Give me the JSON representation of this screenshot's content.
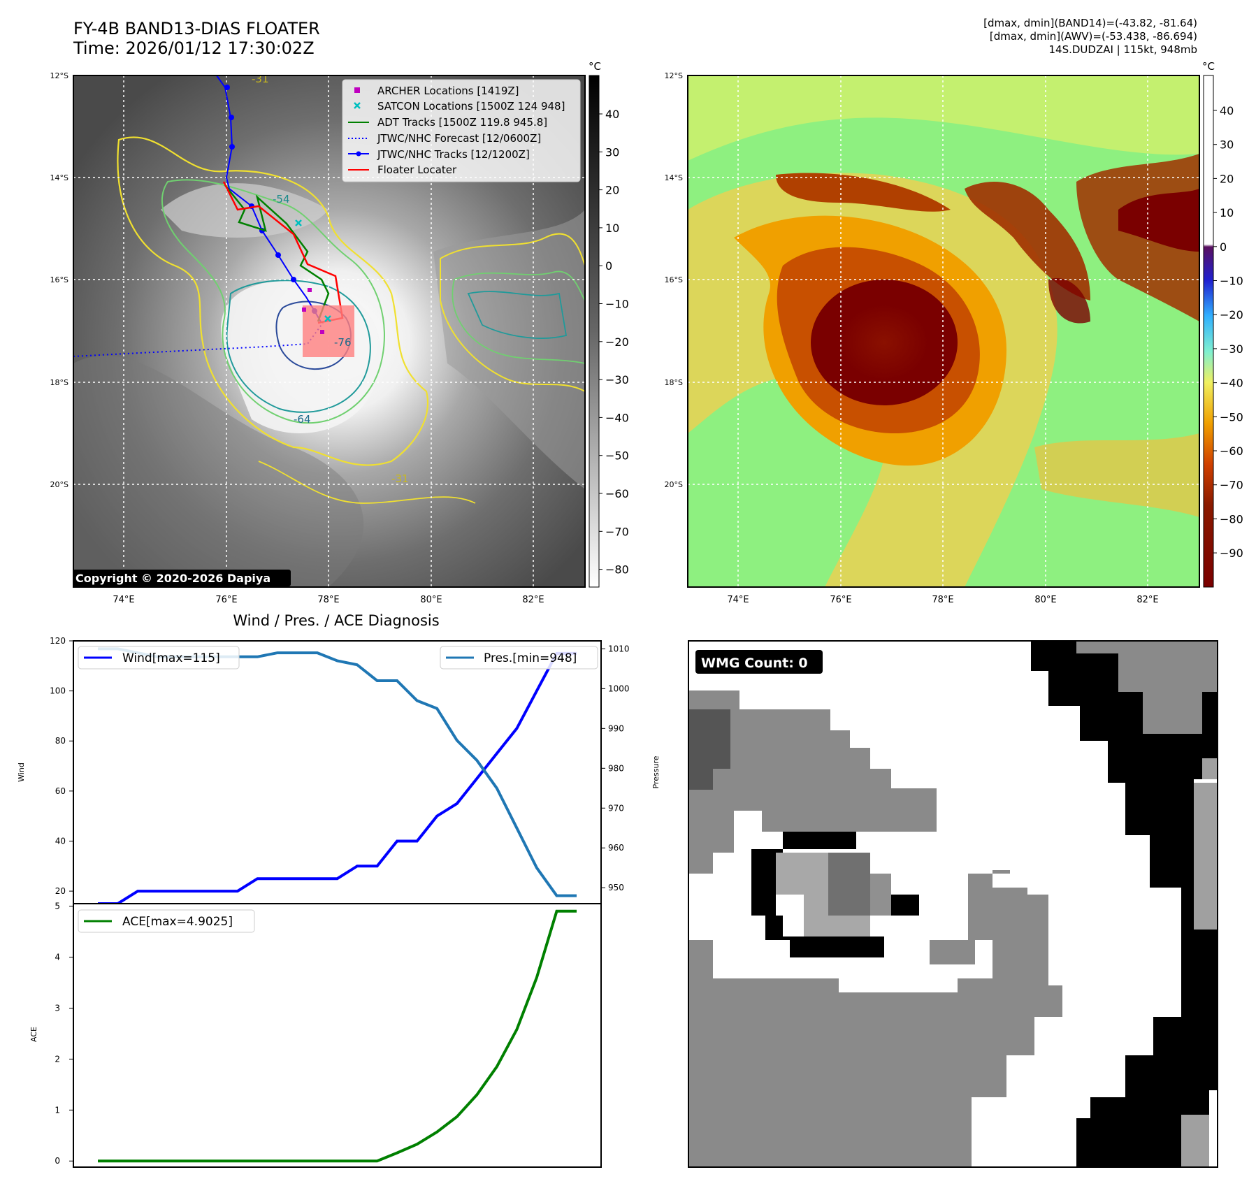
{
  "header": {
    "title_line1": "FY-4B BAND13-DIAS FLOATER",
    "title_line2": "Time: 2026/01/12 17:30:02Z",
    "right_line1": "[dmax, dmin](BAND14)=(-43.82, -81.64)",
    "right_line2": "[dmax, dmin](AWV)=(-53.438, -86.694)",
    "right_line3": "14S.DUDZAI | 115kt, 948mb"
  },
  "map": {
    "lat_ticks": [
      "12°S",
      "14°S",
      "16°S",
      "18°S",
      "20°S"
    ],
    "lon_ticks": [
      "74°E",
      "76°E",
      "78°E",
      "80°E",
      "82°E"
    ],
    "copyright": "Copyright © 2020-2026 Dapiya",
    "contour_labels": [
      "-31",
      "-54",
      "-64",
      "-76"
    ],
    "legend": [
      {
        "label": "ARCHER Locations [1419Z]",
        "color": "#bf00bf"
      },
      {
        "label": "SATCON Locations [1500Z 124 948]",
        "color": "#00bfbf"
      },
      {
        "label": "ADT Tracks [1500Z 119.8 945.8]",
        "color": "#008000"
      },
      {
        "label": "JTWC/NHC Forecast [12/0600Z]",
        "color": "#0000ff"
      },
      {
        "label": "JTWC/NHC Tracks [12/1200Z]",
        "color": "#0000ff"
      },
      {
        "label": "Floater Locater",
        "color": "#ff0000"
      }
    ]
  },
  "colorbar_left": {
    "unit": "°C",
    "ticks": [
      "40",
      "30",
      "20",
      "10",
      "0",
      "−10",
      "−20",
      "−30",
      "−40",
      "−50",
      "−60",
      "−70",
      "−80"
    ]
  },
  "colorbar_right": {
    "unit": "°C",
    "ticks": [
      "40",
      "30",
      "20",
      "10",
      "0",
      "−10",
      "−20",
      "−30",
      "−40",
      "−50",
      "−60",
      "−70",
      "−80",
      "−90"
    ]
  },
  "colors": {
    "eye": "#7a0000",
    "ring": "#c85000",
    "band": "#f0a000",
    "env": "#8ef080",
    "wmg_white": "#ffffff",
    "wmg_black": "#000000",
    "wmg_gray": "#8a8a8a"
  },
  "diag_title": "Wind / Pres. / ACE Diagnosis",
  "chart_data": [
    {
      "type": "line",
      "title": "Wind / Pres. / ACE Diagnosis",
      "ylabel": "Wind",
      "y2label": "Pressure",
      "ylim": [
        15,
        120
      ],
      "y2lim": [
        946,
        1012
      ],
      "yticks": [
        "20",
        "40",
        "60",
        "80",
        "100",
        "120"
      ],
      "y2ticks": [
        "950",
        "960",
        "970",
        "980",
        "990",
        "1000",
        "1010"
      ],
      "x": [
        0,
        1,
        2,
        3,
        4,
        5,
        6,
        7,
        8,
        9,
        10,
        11,
        12,
        13,
        14,
        15,
        16,
        17,
        18,
        19,
        20,
        21,
        22,
        23,
        24
      ],
      "series": [
        {
          "name": "Wind[max=115]",
          "axis": "left",
          "color": "#0000ff",
          "values": [
            15,
            15,
            20,
            20,
            20,
            20,
            20,
            20,
            25,
            25,
            25,
            25,
            25,
            30,
            30,
            40,
            40,
            50,
            55,
            65,
            75,
            85,
            100,
            115,
            115
          ]
        },
        {
          "name": "Pres.[min=948]",
          "axis": "right",
          "color": "#1f77b4",
          "values": [
            1010,
            1010,
            1009,
            1008,
            1008,
            1008,
            1008,
            1008,
            1008,
            1009,
            1009,
            1009,
            1007,
            1006,
            1002,
            1002,
            997,
            995,
            987,
            982,
            975,
            965,
            955,
            948,
            948
          ]
        }
      ]
    },
    {
      "type": "line",
      "ylabel": "ACE",
      "ylim": [
        -0.12,
        5.05
      ],
      "yticks": [
        "0",
        "1",
        "2",
        "3",
        "4",
        "5"
      ],
      "x": [
        0,
        1,
        2,
        3,
        4,
        5,
        6,
        7,
        8,
        9,
        10,
        11,
        12,
        13,
        14,
        15,
        16,
        17,
        18,
        19,
        20,
        21,
        22,
        23,
        24
      ],
      "series": [
        {
          "name": "ACE[max=4.9025]",
          "color": "#008000",
          "values": [
            0,
            0,
            0,
            0,
            0,
            0,
            0,
            0,
            0,
            0,
            0,
            0,
            0,
            0,
            0,
            0.16,
            0.33,
            0.57,
            0.87,
            1.3,
            1.85,
            2.58,
            3.6,
            4.9025,
            4.9025
          ]
        }
      ]
    }
  ],
  "wmg": {
    "label": "WMG Count: 0"
  }
}
